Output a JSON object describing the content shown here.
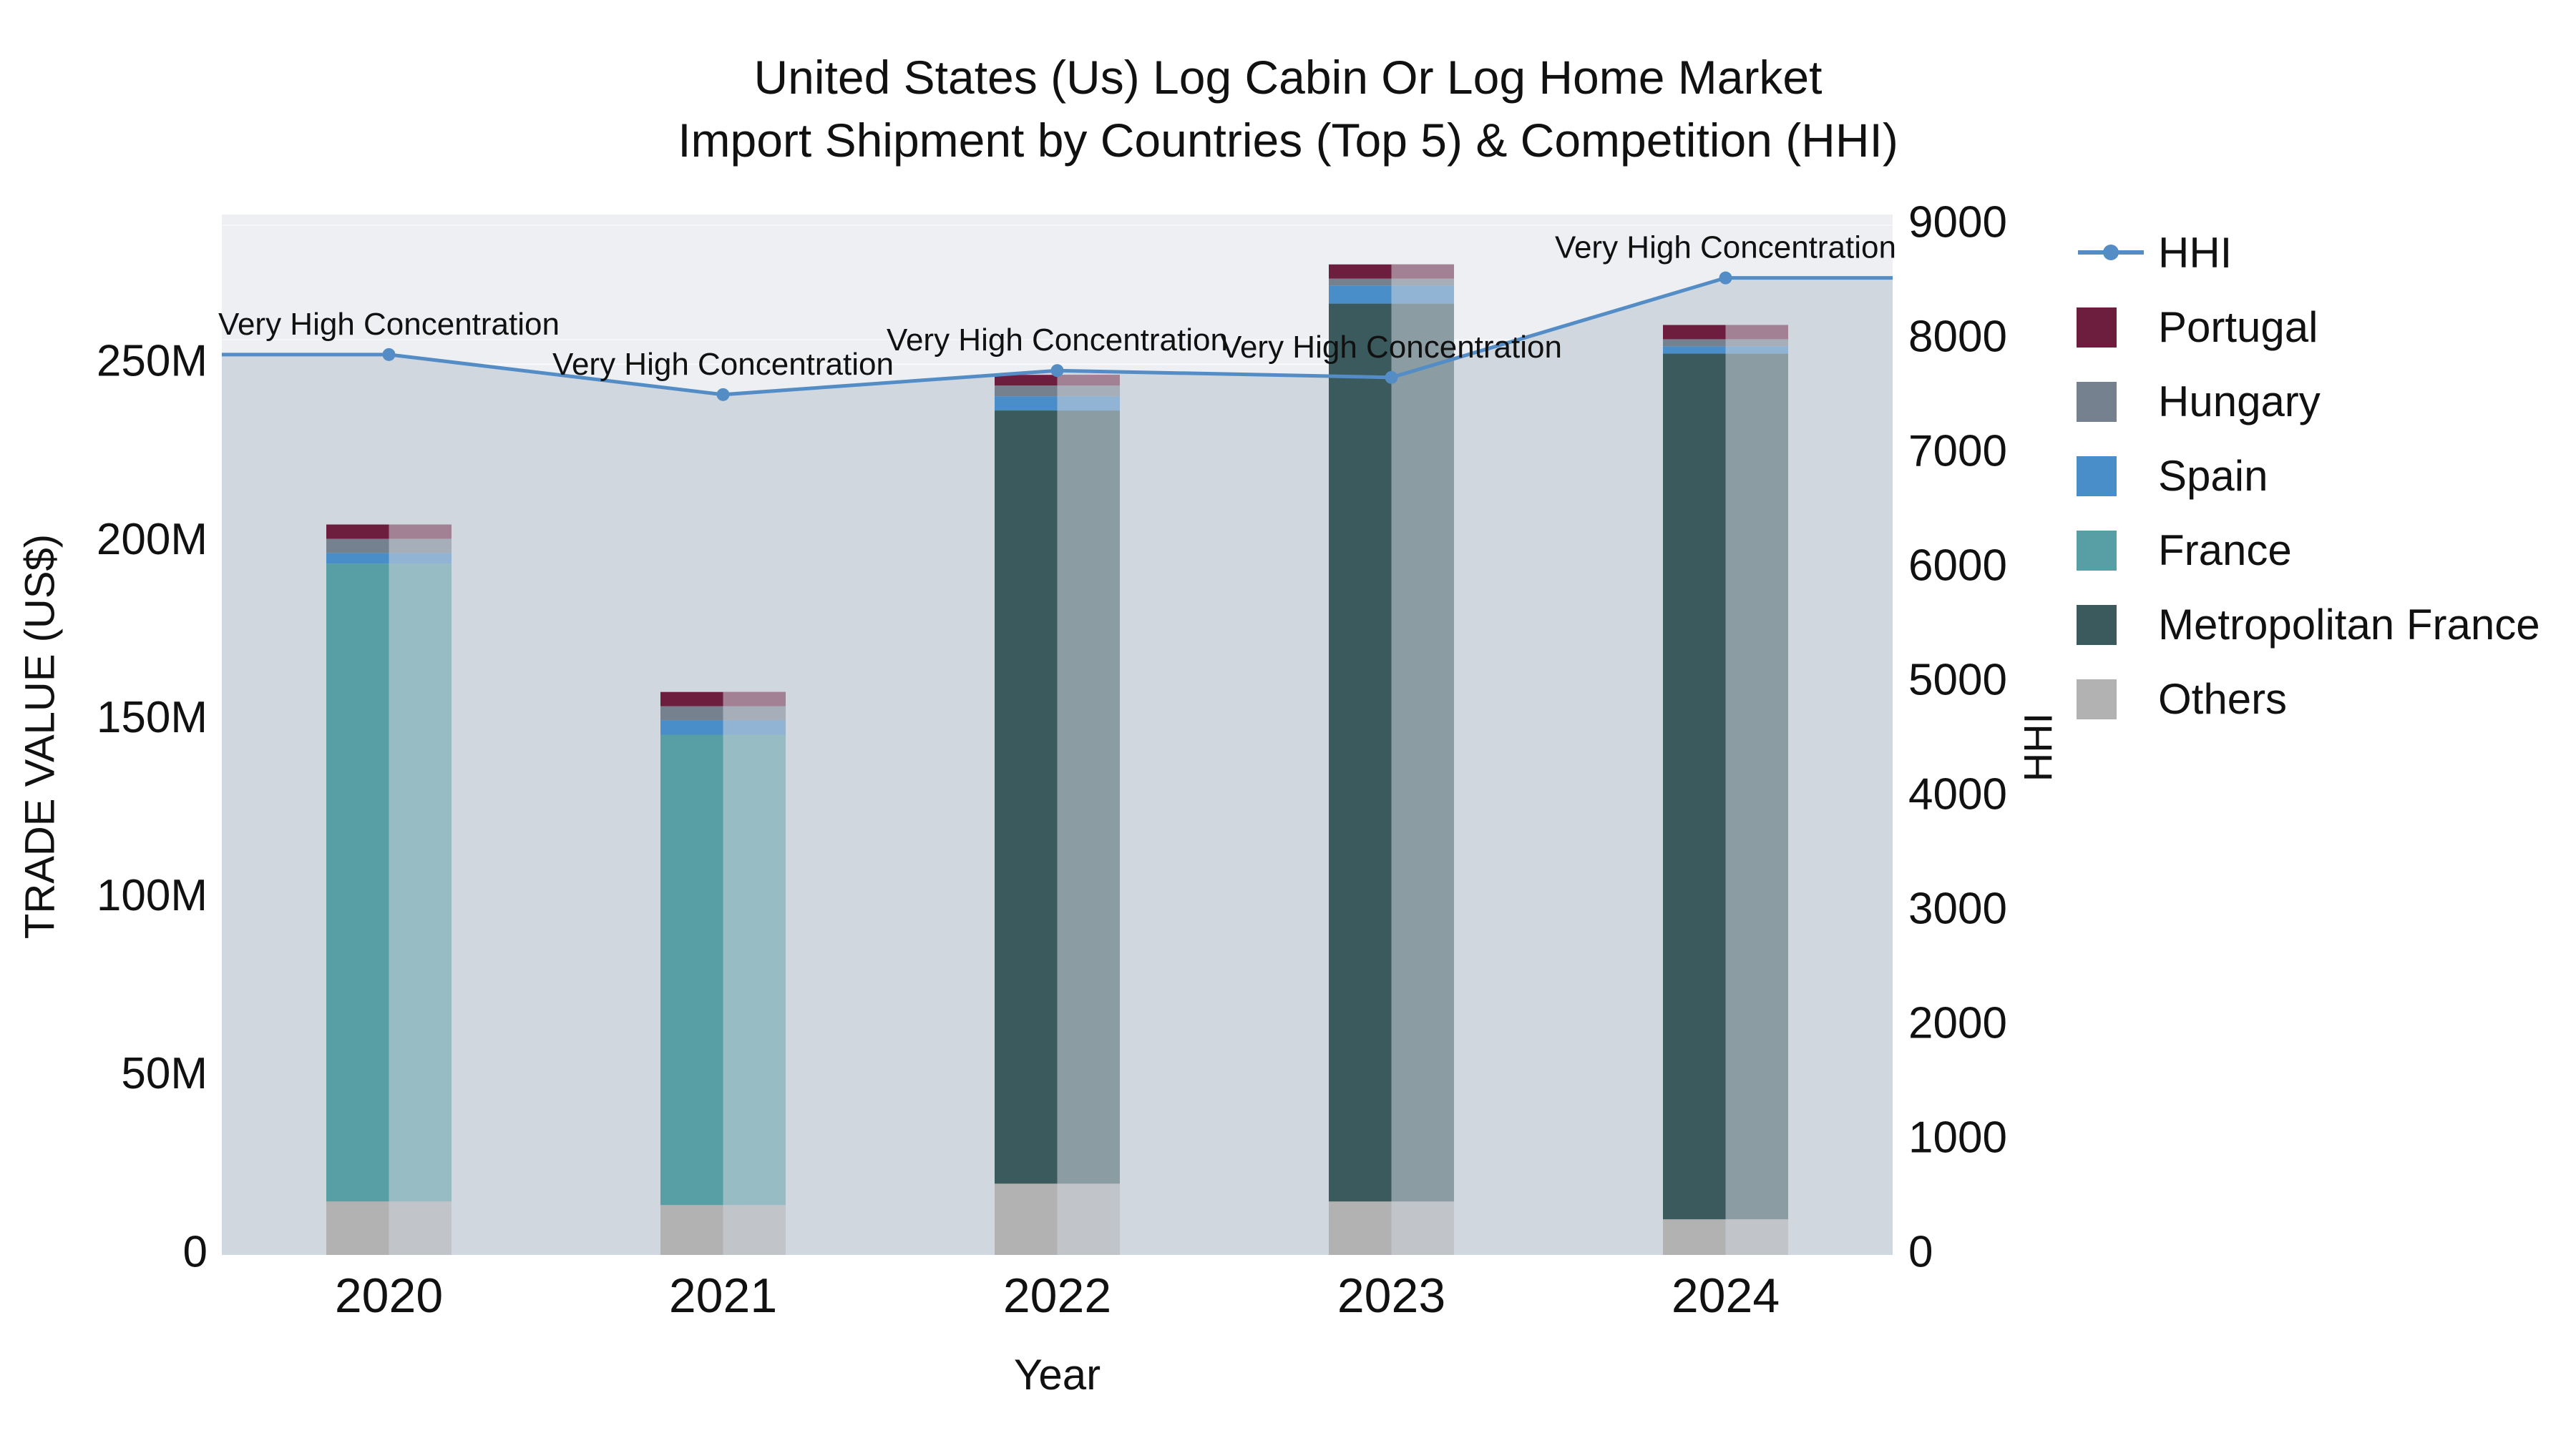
{
  "chart_data": {
    "type": "bar",
    "title": "United States (Us) Log Cabin Or Log Home Market",
    "subtitle": "Import Shipment by Countries (Top 5) & Competition (HHI)",
    "xlabel": "Year",
    "ylabel_left": "TRADE VALUE (US$)",
    "ylabel_right": "HHI",
    "categories": [
      "2020",
      "2021",
      "2022",
      "2023",
      "2024"
    ],
    "value_unit": "M = millions US$",
    "bar_series_bottom_to_top": [
      {
        "name": "Others",
        "color": "#b2b2b2",
        "values": [
          15,
          14,
          20,
          15,
          10
        ]
      },
      {
        "name": "France",
        "color": "#579fa4",
        "values": [
          179,
          132,
          0,
          0,
          0
        ]
      },
      {
        "name": "Metropolitan France",
        "color": "#3b5a5e",
        "values": [
          0,
          0,
          217,
          252,
          243
        ]
      },
      {
        "name": "Spain",
        "color": "#4a8ec9",
        "values": [
          3,
          4,
          4,
          5,
          2
        ]
      },
      {
        "name": "Hungary",
        "color": "#76818f",
        "values": [
          4,
          4,
          3,
          2,
          2
        ]
      },
      {
        "name": "Portugal",
        "color": "#6d1d3d",
        "values": [
          4,
          4,
          3,
          4,
          4
        ]
      }
    ],
    "bar_totals": [
      205,
      158,
      247,
      278,
      261
    ],
    "line_series": {
      "name": "HHI",
      "color": "#548dc5",
      "fill_color": "#cfd5dd",
      "axis": "right",
      "values": [
        7870,
        7520,
        7730,
        7670,
        8540
      ]
    },
    "annotations": [
      "Very High Concentration",
      "Very High Concentration",
      "Very High Concentration",
      "Very High Concentration",
      "Very High Concentration"
    ],
    "legend_order": [
      "HHI",
      "Portugal",
      "Hungary",
      "Spain",
      "France",
      "Metropolitan France",
      "Others"
    ],
    "axes": {
      "left": {
        "tick_labels": [
          "0",
          "50M",
          "100M",
          "150M",
          "200M",
          "250M"
        ],
        "tick_values": [
          0,
          50,
          100,
          150,
          200,
          250
        ],
        "range": [
          0,
          292
        ]
      },
      "right": {
        "tick_labels": [
          "0",
          "1000",
          "2000",
          "3000",
          "4000",
          "5000",
          "6000",
          "7000",
          "8000",
          "9000"
        ],
        "tick_values": [
          0,
          1000,
          2000,
          3000,
          4000,
          5000,
          6000,
          7000,
          8000,
          9000
        ],
        "range": [
          0,
          9094
        ]
      }
    },
    "grid": true,
    "legend_position": "right"
  }
}
